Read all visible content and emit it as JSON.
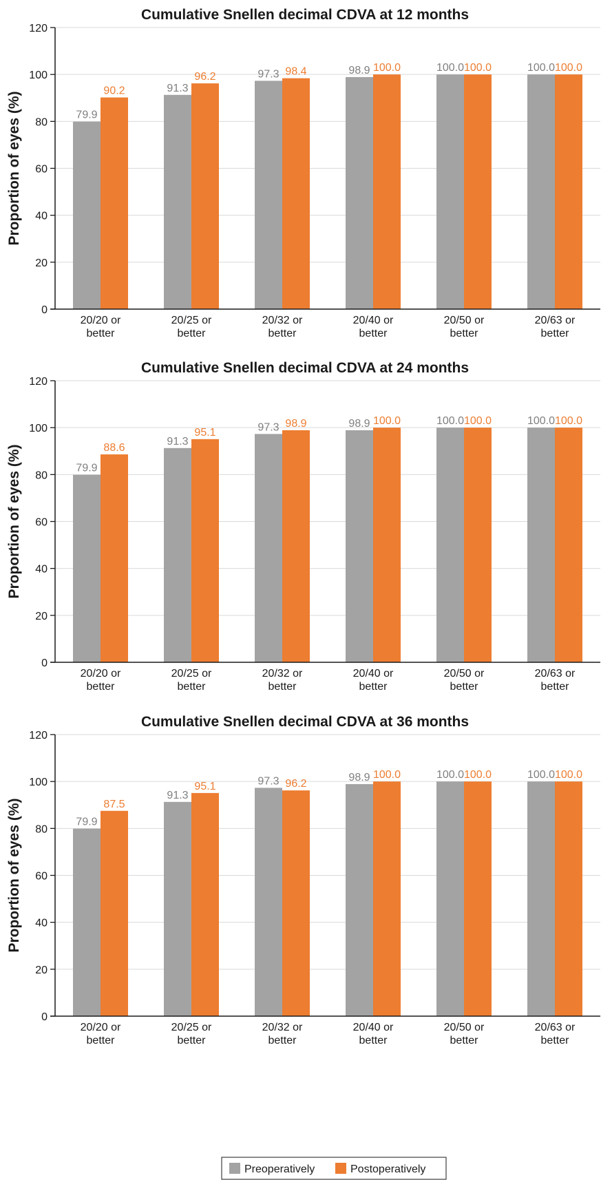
{
  "chart_data": [
    {
      "type": "bar",
      "title": "Cumulative Snellen decimal CDVA at 12 months",
      "ylabel": "Proportion of eyes (%)",
      "xlabel": "",
      "ylim": [
        0,
        120
      ],
      "yticks": [
        "0",
        "20",
        "40",
        "60",
        "80",
        "100",
        "120"
      ],
      "grid": true,
      "categories": [
        [
          "20/20 or",
          "better"
        ],
        [
          "20/25 or",
          "better"
        ],
        [
          "20/32 or",
          "better"
        ],
        [
          "20/40 or",
          "better"
        ],
        [
          "20/50 or",
          "better"
        ],
        [
          "20/63 or",
          "better"
        ]
      ],
      "series": [
        {
          "name": "Preoperatively",
          "values": [
            79.9,
            91.3,
            97.3,
            98.9,
            100.0,
            100.0
          ],
          "labels": [
            "79.9",
            "91.3",
            "97.3",
            "98.9",
            "100.0",
            "100.0"
          ]
        },
        {
          "name": "Postoperatively",
          "values": [
            90.2,
            96.2,
            98.4,
            100.0,
            100.0,
            100.0
          ],
          "labels": [
            "90.2",
            "96.2",
            "98.4",
            "100.0",
            "100.0",
            "100.0"
          ]
        }
      ]
    },
    {
      "type": "bar",
      "title": "Cumulative Snellen decimal CDVA at 24 months",
      "ylabel": "Proportion of eyes (%)",
      "xlabel": "",
      "ylim": [
        0,
        120
      ],
      "yticks": [
        "0",
        "20",
        "40",
        "60",
        "80",
        "100",
        "120"
      ],
      "grid": true,
      "categories": [
        [
          "20/20 or",
          "better"
        ],
        [
          "20/25 or",
          "better"
        ],
        [
          "20/32 or",
          "better"
        ],
        [
          "20/40 or",
          "better"
        ],
        [
          "20/50 or",
          "better"
        ],
        [
          "20/63 or",
          "better"
        ]
      ],
      "series": [
        {
          "name": "Preoperatively",
          "values": [
            79.9,
            91.3,
            97.3,
            98.9,
            100.0,
            100.0
          ],
          "labels": [
            "79.9",
            "91.3",
            "97.3",
            "98.9",
            "100.0",
            "100.0"
          ]
        },
        {
          "name": "Postoperatively",
          "values": [
            88.6,
            95.1,
            98.9,
            100.0,
            100.0,
            100.0
          ],
          "labels": [
            "88.6",
            "95.1",
            "98.9",
            "100.0",
            "100.0",
            "100.0"
          ]
        }
      ]
    },
    {
      "type": "bar",
      "title": "Cumulative Snellen decimal CDVA at 36 months",
      "ylabel": "Proportion of eyes (%)",
      "xlabel": "",
      "ylim": [
        0,
        120
      ],
      "yticks": [
        "0",
        "20",
        "40",
        "60",
        "80",
        "100",
        "120"
      ],
      "grid": true,
      "categories": [
        [
          "20/20 or",
          "better"
        ],
        [
          "20/25 or",
          "better"
        ],
        [
          "20/32 or",
          "better"
        ],
        [
          "20/40 or",
          "better"
        ],
        [
          "20/50 or",
          "better"
        ],
        [
          "20/63 or",
          "better"
        ]
      ],
      "series": [
        {
          "name": "Preoperatively",
          "values": [
            79.9,
            91.3,
            97.3,
            98.9,
            100.0,
            100.0
          ],
          "labels": [
            "79.9",
            "91.3",
            "97.3",
            "98.9",
            "100.0",
            "100.0"
          ]
        },
        {
          "name": "Postoperatively",
          "values": [
            87.5,
            95.1,
            96.2,
            100.0,
            100.0,
            100.0
          ],
          "labels": [
            "87.5",
            "95.1",
            "96.2",
            "100.0",
            "100.0",
            "100.0"
          ]
        }
      ]
    }
  ],
  "legend": {
    "placement": "bottom-center",
    "items": [
      {
        "label": "Preoperatively",
        "color": "#a3a3a3"
      },
      {
        "label": "Postoperatively",
        "color": "#ed7d31"
      }
    ]
  },
  "colors": {
    "preoperatively_bar": "#a3a3a3",
    "postoperatively_bar": "#ed7d31",
    "preoperatively_label": "#7f7f7f",
    "postoperatively_label": "#ed7d31",
    "gridline": "#d9d9d9",
    "axis": "#1a1a1a"
  }
}
